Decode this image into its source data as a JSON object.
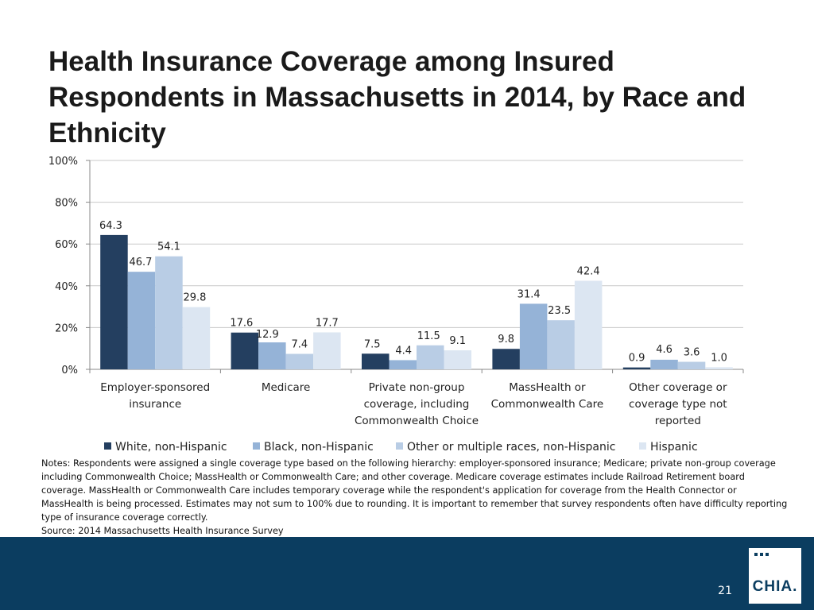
{
  "slide": {
    "title": "Health Insurance Coverage among Insured Respondents in Massachusetts in 2014, by Race and Ethnicity",
    "notes": "Notes: Respondents were assigned a single coverage type based on the following hierarchy: employer-sponsored insurance; Medicare; private non-group coverage including Commonwealth Choice; MassHealth or Commonwealth Care; and other coverage. Medicare coverage estimates include Railroad Retirement board coverage. MassHealth or Commonwealth Care includes temporary coverage while the respondent's application for coverage from the Health Connector or MassHealth is being processed. Estimates may not sum to 100% due to rounding. It is important to remember that survey respondents often have difficulty reporting type of insurance coverage correctly.",
    "source": "Source:  2014 Massachusetts Health Insurance Survey",
    "page_number": "21",
    "logo_text": "CHIA."
  },
  "chart_data": {
    "type": "bar",
    "title": "Health Insurance Coverage among Insured Respondents in Massachusetts in 2014, by Race and Ethnicity",
    "xlabel": "",
    "ylabel": "",
    "ylim": [
      0,
      100
    ],
    "yticks": [
      0,
      20,
      40,
      60,
      80,
      100
    ],
    "ytick_labels": [
      "0%",
      "20%",
      "40%",
      "60%",
      "80%",
      "100%"
    ],
    "grid": true,
    "legend_position": "bottom",
    "categories": [
      [
        "Employer-sponsored",
        "insurance"
      ],
      [
        "Medicare"
      ],
      [
        "Private non-group",
        "coverage, including",
        "Commonwealth Choice"
      ],
      [
        "MassHealth or",
        "Commonwealth Care"
      ],
      [
        "Other coverage or",
        "coverage type not",
        "reported"
      ]
    ],
    "series": [
      {
        "name": "White, non-Hispanic",
        "color": "#243f60",
        "values": [
          64.3,
          17.6,
          7.5,
          9.8,
          0.9
        ],
        "labels": [
          "64.3",
          "17.6",
          "7.5",
          "9.8",
          "0.9"
        ]
      },
      {
        "name": "Black, non-Hispanic",
        "color": "#95b3d7",
        "values": [
          46.7,
          12.9,
          4.4,
          31.4,
          4.6
        ],
        "labels": [
          "46.7",
          "12.9",
          "4.4",
          "31.4",
          "4.6"
        ]
      },
      {
        "name": "Other or multiple races, non-Hispanic",
        "color": "#b9cde5",
        "values": [
          54.1,
          7.4,
          11.5,
          23.5,
          3.6
        ],
        "labels": [
          "54.1",
          "7.4",
          "11.5",
          "23.5",
          "3.6"
        ]
      },
      {
        "name": "Hispanic",
        "color": "#dce6f2",
        "values": [
          29.8,
          17.7,
          9.1,
          42.4,
          1.0
        ],
        "labels": [
          "29.8",
          "17.7",
          "9.1",
          "42.4",
          "1.0"
        ]
      }
    ]
  }
}
